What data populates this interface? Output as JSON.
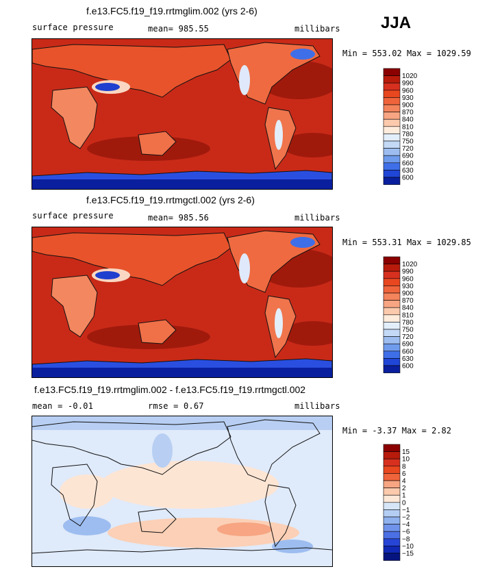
{
  "season": "JJA",
  "panels": [
    {
      "title": "f.e13.FC5.f19_f19.rrtmglim.002 (yrs 2-6)",
      "left_label": "surface pressure",
      "mean_label": "mean=",
      "mean_value": "985.55",
      "units": "millibars",
      "min_label": "Min =",
      "min_value": "553.02",
      "max_label": "Max =",
      "max_value": "1029.59"
    },
    {
      "title": "f.e13.FC5.f19_f19.rrtmgctl.002 (yrs 2-6)",
      "left_label": "surface pressure",
      "mean_label": "mean=",
      "mean_value": "985.56",
      "units": "millibars",
      "min_label": "Min =",
      "min_value": "553.31",
      "max_label": "Max =",
      "max_value": "1029.85"
    },
    {
      "title": "f.e13.FC5.f19_f19.rrtmglim.002 - f.e13.FC5.f19_f19.rrtmgctl.002",
      "mean_label": "mean =",
      "mean_value": "-0.01",
      "rmse_label": "rmse =",
      "rmse_value": "0.67",
      "units": "millibars",
      "min_label": "Min =",
      "min_value": "-3.37",
      "max_label": "Max =",
      "max_value": "2.82"
    }
  ],
  "chart_data": [
    {
      "type": "heatmap",
      "title": "f.e13.FC5.f19_f19.rrtmglim.002 (yrs 2-6)",
      "variable": "surface pressure",
      "units": "millibars",
      "mean": 985.55,
      "min": 553.02,
      "max": 1029.59,
      "colorbar_levels": [
        1020,
        990,
        960,
        930,
        900,
        870,
        840,
        810,
        780,
        750,
        720,
        690,
        660,
        630,
        600
      ],
      "colorbar_colors": [
        "#8b0000",
        "#b81b0b",
        "#d7301f",
        "#e8471f",
        "#f0643c",
        "#f4845c",
        "#f7a582",
        "#fbc9ac",
        "#fdebdc",
        "#e3eefb",
        "#c3d9f6",
        "#9dbdf0",
        "#6f9bec",
        "#3f6fe8",
        "#1f46d6",
        "#0a1f9e"
      ]
    },
    {
      "type": "heatmap",
      "title": "f.e13.FC5.f19_f19.rrtmgctl.002 (yrs 2-6)",
      "variable": "surface pressure",
      "units": "millibars",
      "mean": 985.56,
      "min": 553.31,
      "max": 1029.85,
      "colorbar_levels": [
        1020,
        990,
        960,
        930,
        900,
        870,
        840,
        810,
        780,
        750,
        720,
        690,
        660,
        630,
        600
      ],
      "colorbar_colors": [
        "#8b0000",
        "#b81b0b",
        "#d7301f",
        "#e8471f",
        "#f0643c",
        "#f4845c",
        "#f7a582",
        "#fbc9ac",
        "#fdebdc",
        "#e3eefb",
        "#c3d9f6",
        "#9dbdf0",
        "#6f9bec",
        "#3f6fe8",
        "#1f46d6",
        "#0a1f9e"
      ]
    },
    {
      "type": "heatmap",
      "title": "f.e13.FC5.f19_f19.rrtmglim.002 - f.e13.FC5.f19_f19.rrtmgctl.002",
      "units": "millibars",
      "mean": -0.01,
      "rmse": 0.67,
      "min": -3.37,
      "max": 2.82,
      "colorbar_levels": [
        15,
        10,
        8,
        6,
        4,
        2,
        1,
        0,
        -1,
        -2,
        -4,
        -6,
        -8,
        -10,
        -15
      ],
      "colorbar_colors": [
        "#8b0000",
        "#b81b0b",
        "#d7301f",
        "#e8471f",
        "#f0643c",
        "#f7a582",
        "#fbc9ac",
        "#fde8d8",
        "#d6e6f7",
        "#b4cdf3",
        "#8fb1ee",
        "#6f93ea",
        "#4b6fe4",
        "#2645d6",
        "#1028b4",
        "#061480"
      ]
    }
  ]
}
